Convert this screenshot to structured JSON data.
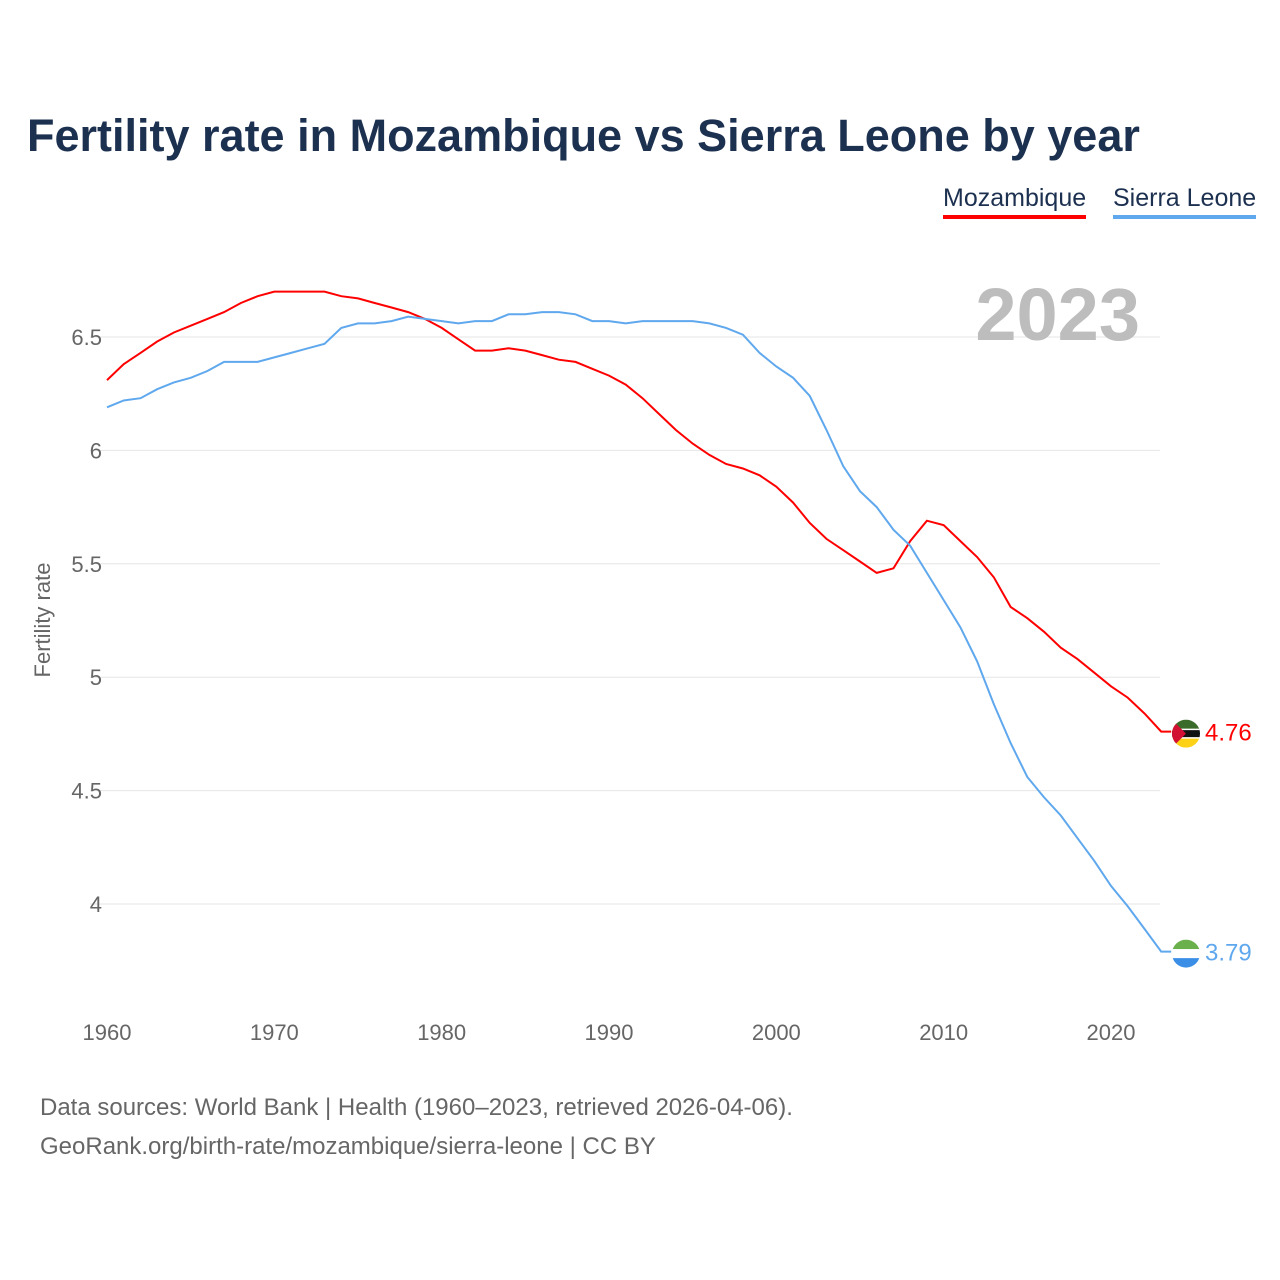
{
  "chart_data": {
    "type": "line",
    "title": "Fertility rate in Mozambique vs Sierra Leone by year",
    "xlabel": "",
    "ylabel": "Fertility rate",
    "year_badge": "2023",
    "xlim": [
      1960,
      2023
    ],
    "ylim": [
      3.75,
      6.85
    ],
    "x_ticks": [
      "1960",
      "1970",
      "1980",
      "1990",
      "2000",
      "2010",
      "2020"
    ],
    "y_ticks": [
      "4",
      "4.5",
      "5",
      "5.5",
      "6",
      "6.5"
    ],
    "grid": true,
    "legend_placement": "top-right",
    "x": [
      1960,
      1961,
      1962,
      1963,
      1964,
      1965,
      1966,
      1967,
      1968,
      1969,
      1970,
      1971,
      1972,
      1973,
      1974,
      1975,
      1976,
      1977,
      1978,
      1979,
      1980,
      1981,
      1982,
      1983,
      1984,
      1985,
      1986,
      1987,
      1988,
      1989,
      1990,
      1991,
      1992,
      1993,
      1994,
      1995,
      1996,
      1997,
      1998,
      1999,
      2000,
      2001,
      2002,
      2003,
      2004,
      2005,
      2006,
      2007,
      2008,
      2009,
      2010,
      2011,
      2012,
      2013,
      2014,
      2015,
      2016,
      2017,
      2018,
      2019,
      2020,
      2021,
      2022,
      2023
    ],
    "series": [
      {
        "name": "Mozambique",
        "color": "#ff0000",
        "end_label": "4.76",
        "values": [
          6.31,
          6.38,
          6.43,
          6.48,
          6.52,
          6.55,
          6.58,
          6.61,
          6.65,
          6.68,
          6.7,
          6.7,
          6.7,
          6.7,
          6.68,
          6.67,
          6.65,
          6.63,
          6.61,
          6.58,
          6.54,
          6.49,
          6.44,
          6.44,
          6.45,
          6.44,
          6.42,
          6.4,
          6.39,
          6.36,
          6.33,
          6.29,
          6.23,
          6.16,
          6.09,
          6.03,
          5.98,
          5.94,
          5.92,
          5.89,
          5.84,
          5.77,
          5.68,
          5.61,
          5.56,
          5.51,
          5.46,
          5.48,
          5.6,
          5.69,
          5.67,
          5.6,
          5.53,
          5.44,
          5.31,
          5.26,
          5.2,
          5.13,
          5.08,
          5.02,
          4.96,
          4.91,
          4.84,
          4.76
        ]
      },
      {
        "name": "Sierra Leone",
        "color": "#5fa8ee",
        "end_label": "3.79",
        "values": [
          6.19,
          6.22,
          6.23,
          6.27,
          6.3,
          6.32,
          6.35,
          6.39,
          6.39,
          6.39,
          6.41,
          6.43,
          6.45,
          6.47,
          6.54,
          6.56,
          6.56,
          6.57,
          6.59,
          6.58,
          6.57,
          6.56,
          6.57,
          6.57,
          6.6,
          6.6,
          6.61,
          6.61,
          6.6,
          6.57,
          6.57,
          6.56,
          6.57,
          6.57,
          6.57,
          6.57,
          6.56,
          6.54,
          6.51,
          6.43,
          6.37,
          6.32,
          6.24,
          6.09,
          5.93,
          5.82,
          5.75,
          5.65,
          5.58,
          5.46,
          5.34,
          5.22,
          5.07,
          4.88,
          4.71,
          4.56,
          4.47,
          4.39,
          4.29,
          4.19,
          4.08,
          3.99,
          3.89,
          3.79
        ]
      }
    ]
  },
  "source": {
    "line1": "Data sources: World Bank | Health (1960–2023, retrieved 2026-04-06).",
    "line2": "GeoRank.org/birth-rate/mozambique/sierra-leone | CC BY"
  }
}
